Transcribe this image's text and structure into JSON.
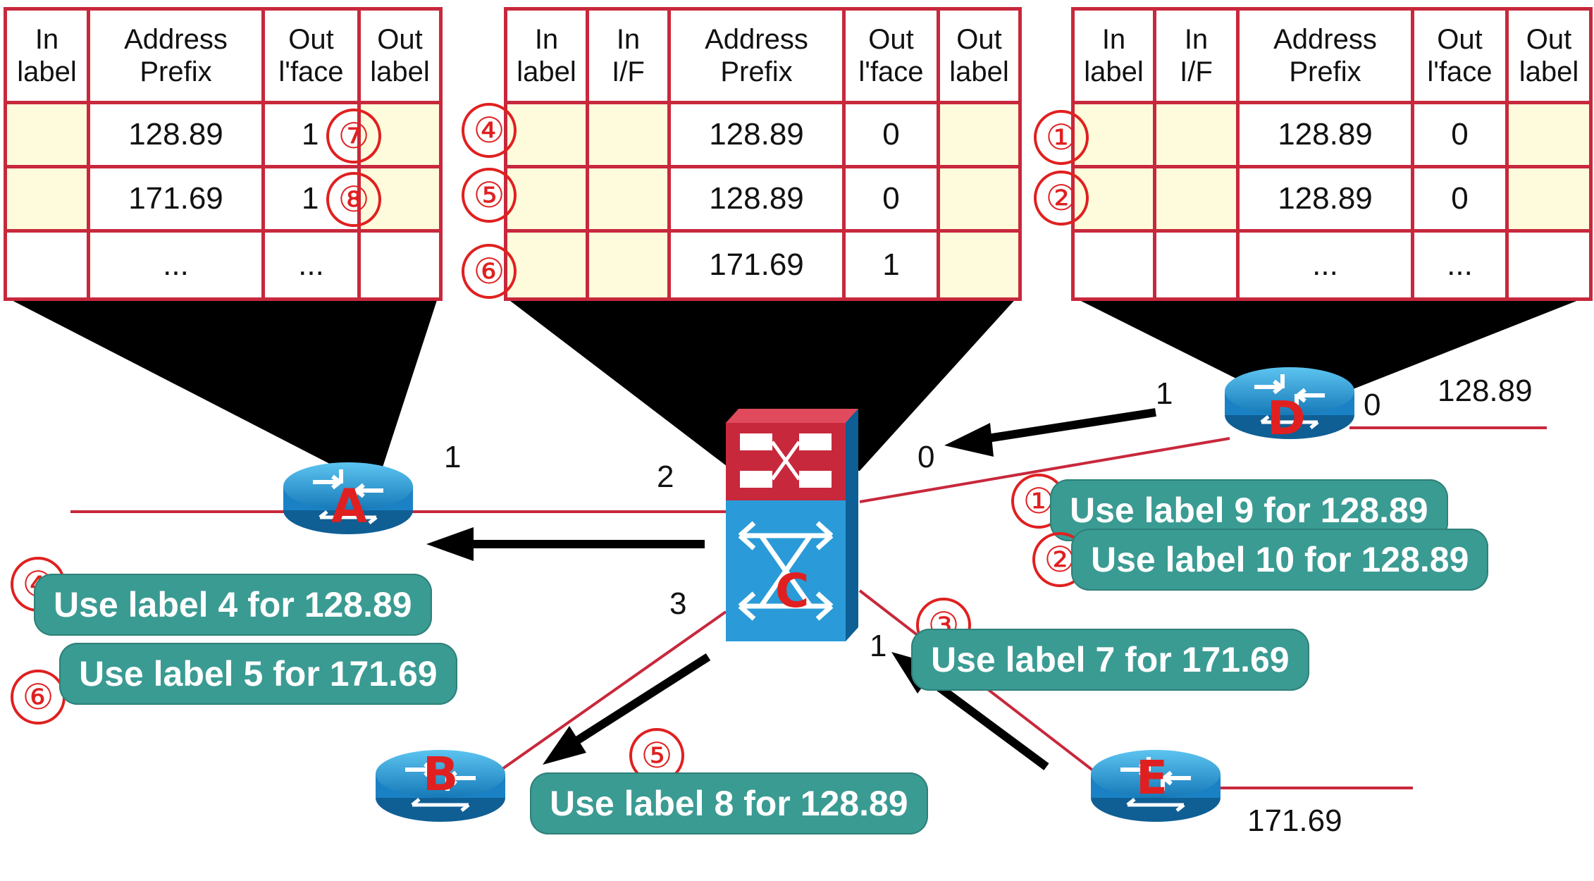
{
  "tables": {
    "left": {
      "headers": [
        [
          "In",
          "label"
        ],
        [
          "Address",
          "Prefix"
        ],
        [
          "Out",
          "l'face"
        ],
        [
          "Out",
          "label"
        ]
      ],
      "rows": [
        [
          "",
          "128.89",
          "1",
          ""
        ],
        [
          "",
          "171.69",
          "1",
          ""
        ],
        [
          "",
          "...",
          "...",
          ""
        ]
      ],
      "row_markers": [
        "⑦",
        "⑧"
      ]
    },
    "middle": {
      "headers": [
        [
          "In",
          "label"
        ],
        [
          "In",
          "I/F"
        ],
        [
          "Address",
          "Prefix"
        ],
        [
          "Out",
          "l'face"
        ],
        [
          "Out",
          "label"
        ]
      ],
      "rows": [
        [
          "",
          "",
          "128.89",
          "0",
          ""
        ],
        [
          "",
          "",
          "128.89",
          "0",
          ""
        ],
        [
          "",
          "",
          "171.69",
          "1",
          ""
        ]
      ],
      "row_markers": [
        "④",
        "⑤",
        "⑥"
      ]
    },
    "right": {
      "headers": [
        [
          "In",
          "label"
        ],
        [
          "In",
          "I/F"
        ],
        [
          "Address",
          "Prefix"
        ],
        [
          "Out",
          "l'face"
        ],
        [
          "Out",
          "label"
        ]
      ],
      "rows": [
        [
          "",
          "",
          "128.89",
          "0",
          ""
        ],
        [
          "",
          "",
          "128.89",
          "0",
          ""
        ],
        [
          "",
          "",
          "...",
          "...",
          ""
        ]
      ],
      "row_markers": [
        "①",
        "②"
      ]
    }
  },
  "routers": {
    "A": "A",
    "B": "B",
    "C": "C",
    "D": "D",
    "E": "E"
  },
  "interfaces": {
    "a1": "1",
    "c2": "2",
    "c0": "0",
    "c3": "3",
    "c1": "1",
    "d1": "1",
    "d0": "0"
  },
  "networks": {
    "d_net": "128.89",
    "e_net": "171.69"
  },
  "messages": {
    "m1": {
      "num": "①",
      "text": "Use label 9 for 128.89"
    },
    "m2": {
      "num": "②",
      "text": "Use label 10 for 128.89"
    },
    "m3": {
      "num": "③",
      "text": "Use label 7 for 171.69"
    },
    "m4": {
      "num": "④",
      "text": "Use label 4 for 128.89"
    },
    "m5": {
      "num": "⑤",
      "text": "Use label 8 for 128.89"
    },
    "m6": {
      "num": "⑥",
      "text": "Use label 5 for 171.69"
    }
  },
  "colors": {
    "table_border": "#c8283c",
    "cell_highlight": "#fdfbdc",
    "bubble": "#3a9b93",
    "marker": "#e02020",
    "router": "#2a9bd8"
  }
}
